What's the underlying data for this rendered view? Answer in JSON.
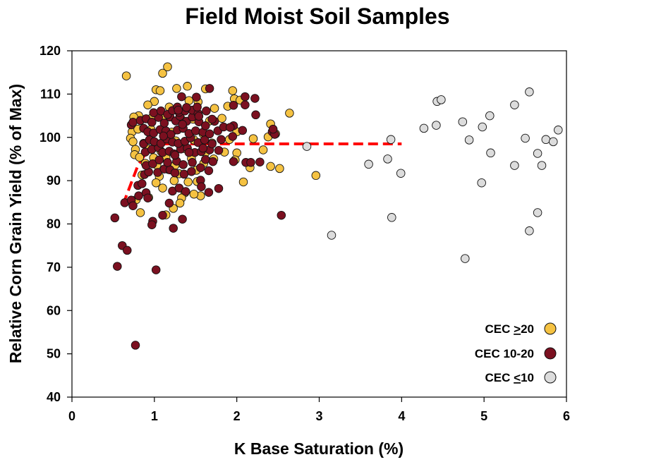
{
  "chart_data": {
    "type": "scatter",
    "title": "Field Moist Soil Samples",
    "xlabel": "K Base Saturation (%)",
    "ylabel": "Relative Corn Grain Yield (% of Max)",
    "xlim": [
      0,
      6
    ],
    "ylim": [
      40,
      120
    ],
    "xticks": [
      0,
      1,
      2,
      3,
      4,
      5,
      6
    ],
    "yticks": [
      40,
      50,
      60,
      70,
      80,
      90,
      100,
      110,
      120
    ],
    "grid": false,
    "legend_position": "bottom-right",
    "series": [
      {
        "name": "CEC >20",
        "legend_parts": [
          "CEC ",
          ">",
          "20"
        ],
        "color": "#F5C242",
        "points": [
          [
            0.66,
            114.2
          ],
          [
            1.1,
            114.8
          ],
          [
            1.16,
            116.3
          ],
          [
            1.02,
            111.0
          ],
          [
            1.07,
            110.8
          ],
          [
            1.27,
            111.3
          ],
          [
            1.4,
            111.8
          ],
          [
            1.62,
            111.2
          ],
          [
            1.95,
            110.8
          ],
          [
            1.97,
            108.9
          ],
          [
            1.42,
            108.5
          ],
          [
            1.53,
            108.2
          ],
          [
            1.0,
            108.3
          ],
          [
            0.92,
            107.5
          ],
          [
            1.18,
            107.0
          ],
          [
            1.73,
            106.7
          ],
          [
            1.89,
            107.2
          ],
          [
            2.04,
            108.6
          ],
          [
            2.64,
            105.6
          ],
          [
            0.81,
            105.0
          ],
          [
            0.75,
            104.7
          ],
          [
            0.97,
            104.5
          ],
          [
            1.1,
            104.9
          ],
          [
            1.33,
            104.1
          ],
          [
            1.47,
            104.2
          ],
          [
            1.67,
            103.8
          ],
          [
            1.82,
            104.4
          ],
          [
            2.41,
            103.1
          ],
          [
            0.73,
            101.3
          ],
          [
            0.8,
            101.9
          ],
          [
            0.96,
            101.8
          ],
          [
            1.21,
            101.2
          ],
          [
            1.59,
            100.8
          ],
          [
            2.0,
            101.3
          ],
          [
            2.47,
            100.8
          ],
          [
            0.71,
            99.8
          ],
          [
            0.74,
            99.0
          ],
          [
            0.87,
            98.6
          ],
          [
            1.0,
            98.9
          ],
          [
            1.26,
            99.2
          ],
          [
            1.48,
            99.4
          ],
          [
            1.7,
            98.7
          ],
          [
            1.91,
            99.5
          ],
          [
            2.2,
            99.7
          ],
          [
            2.38,
            100.1
          ],
          [
            0.77,
            97.2
          ],
          [
            0.93,
            97.3
          ],
          [
            1.08,
            96.8
          ],
          [
            1.37,
            97.4
          ],
          [
            1.62,
            96.5
          ],
          [
            1.85,
            96.6
          ],
          [
            2.0,
            96.4
          ],
          [
            2.32,
            97.1
          ],
          [
            0.76,
            96.0
          ],
          [
            0.82,
            95.4
          ],
          [
            0.99,
            95.3
          ],
          [
            1.14,
            95.3
          ],
          [
            1.45,
            95.1
          ],
          [
            1.72,
            95.0
          ],
          [
            1.98,
            94.8
          ],
          [
            0.89,
            94.0
          ],
          [
            1.03,
            93.6
          ],
          [
            1.25,
            93.5
          ],
          [
            1.6,
            94.0
          ],
          [
            2.16,
            93.0
          ],
          [
            2.41,
            93.3
          ],
          [
            2.52,
            92.8
          ],
          [
            1.17,
            92.6
          ],
          [
            1.3,
            91.6
          ],
          [
            1.51,
            92.4
          ],
          [
            0.85,
            91.3
          ],
          [
            1.06,
            91.0
          ],
          [
            1.24,
            90.0
          ],
          [
            1.41,
            89.7
          ],
          [
            1.52,
            89.8
          ],
          [
            2.08,
            89.7
          ],
          [
            2.96,
            91.2
          ],
          [
            1.02,
            89.5
          ],
          [
            1.1,
            88.3
          ],
          [
            1.37,
            87.2
          ],
          [
            1.56,
            86.5
          ],
          [
            1.48,
            86.9
          ],
          [
            1.33,
            86.0
          ],
          [
            0.93,
            86.1
          ],
          [
            1.31,
            84.8
          ],
          [
            1.23,
            83.6
          ],
          [
            1.14,
            82.1
          ],
          [
            0.83,
            82.6
          ],
          [
            0.78,
            85.6
          ]
        ]
      },
      {
        "name": "CEC 10-20",
        "legend_parts": [
          "CEC 10-20"
        ],
        "color": "#7B1020",
        "points": [
          [
            0.52,
            81.4
          ],
          [
            0.55,
            70.2
          ],
          [
            0.61,
            75.0
          ],
          [
            0.67,
            73.9
          ],
          [
            0.77,
            52.0
          ],
          [
            1.02,
            69.4
          ],
          [
            0.98,
            80.6
          ],
          [
            0.97,
            79.8
          ],
          [
            1.1,
            82.0
          ],
          [
            1.23,
            79.0
          ],
          [
            1.34,
            81.1
          ],
          [
            2.54,
            82.0
          ],
          [
            0.64,
            84.9
          ],
          [
            0.72,
            85.5
          ],
          [
            0.74,
            84.2
          ],
          [
            0.81,
            86.5
          ],
          [
            0.9,
            87.2
          ],
          [
            0.92,
            86.0
          ],
          [
            1.18,
            84.8
          ],
          [
            1.22,
            87.6
          ],
          [
            1.3,
            88.3
          ],
          [
            1.38,
            87.5
          ],
          [
            1.66,
            87.3
          ],
          [
            1.78,
            88.2
          ],
          [
            0.8,
            88.9
          ],
          [
            0.85,
            89.3
          ],
          [
            0.88,
            91.4
          ],
          [
            0.93,
            92.0
          ],
          [
            1.04,
            91.9
          ],
          [
            1.12,
            92.7
          ],
          [
            1.19,
            92.5
          ],
          [
            1.25,
            91.8
          ],
          [
            1.36,
            91.5
          ],
          [
            1.45,
            92.1
          ],
          [
            1.56,
            90.1
          ],
          [
            1.66,
            92.3
          ],
          [
            1.57,
            88.6
          ],
          [
            0.9,
            93.5
          ],
          [
            0.98,
            93.9
          ],
          [
            1.06,
            94.8
          ],
          [
            1.16,
            94.2
          ],
          [
            1.27,
            94.5
          ],
          [
            1.35,
            93.7
          ],
          [
            1.46,
            94.2
          ],
          [
            1.56,
            93.0
          ],
          [
            1.62,
            94.9
          ],
          [
            1.71,
            94.4
          ],
          [
            1.96,
            94.4
          ],
          [
            2.11,
            94.2
          ],
          [
            2.17,
            94.2
          ],
          [
            2.28,
            94.3
          ],
          [
            0.89,
            96.6
          ],
          [
            0.97,
            97.2
          ],
          [
            1.05,
            97.6
          ],
          [
            1.1,
            96.5
          ],
          [
            1.18,
            96.8
          ],
          [
            1.24,
            96.2
          ],
          [
            1.32,
            97.3
          ],
          [
            1.4,
            97.5
          ],
          [
            1.49,
            96.5
          ],
          [
            1.57,
            96.7
          ],
          [
            1.67,
            97.1
          ],
          [
            1.78,
            97.0
          ],
          [
            0.87,
            98.5
          ],
          [
            0.94,
            99.4
          ],
          [
            1.0,
            99.0
          ],
          [
            1.08,
            98.6
          ],
          [
            1.15,
            99.6
          ],
          [
            1.22,
            98.9
          ],
          [
            1.29,
            98.6
          ],
          [
            1.37,
            99.1
          ],
          [
            1.44,
            99.9
          ],
          [
            1.53,
            98.8
          ],
          [
            1.61,
            99.4
          ],
          [
            1.7,
            98.5
          ],
          [
            1.81,
            99.5
          ],
          [
            1.95,
            100.2
          ],
          [
            0.72,
            102.9
          ],
          [
            0.87,
            102.1
          ],
          [
            0.92,
            101.3
          ],
          [
            0.99,
            101.0
          ],
          [
            1.07,
            101.8
          ],
          [
            1.14,
            101.5
          ],
          [
            1.2,
            100.7
          ],
          [
            1.28,
            101.7
          ],
          [
            1.35,
            102.1
          ],
          [
            1.42,
            100.9
          ],
          [
            1.5,
            101.5
          ],
          [
            1.59,
            101.2
          ],
          [
            1.67,
            100.8
          ],
          [
            1.77,
            101.5
          ],
          [
            1.96,
            102.7
          ],
          [
            2.07,
            101.6
          ],
          [
            2.43,
            101.3
          ],
          [
            2.46,
            100.7
          ],
          [
            0.74,
            103.5
          ],
          [
            0.83,
            103.9
          ],
          [
            0.9,
            104.3
          ],
          [
            0.97,
            103.5
          ],
          [
            1.05,
            104.6
          ],
          [
            1.12,
            103.3
          ],
          [
            1.19,
            104.7
          ],
          [
            1.26,
            103.8
          ],
          [
            1.31,
            104.9
          ],
          [
            1.39,
            103.7
          ],
          [
            1.46,
            104.7
          ],
          [
            1.54,
            103.6
          ],
          [
            1.62,
            102.7
          ],
          [
            1.73,
            103.7
          ],
          [
            1.84,
            102.4
          ],
          [
            1.92,
            102.3
          ],
          [
            2.44,
            101.9
          ],
          [
            0.99,
            105.7
          ],
          [
            1.08,
            106.1
          ],
          [
            1.16,
            105.3
          ],
          [
            1.22,
            106.2
          ],
          [
            1.3,
            105.8
          ],
          [
            1.37,
            106.1
          ],
          [
            1.46,
            106.3
          ],
          [
            1.53,
            105.5
          ],
          [
            1.63,
            106.1
          ],
          [
            1.7,
            104.2
          ],
          [
            2.23,
            105.2
          ],
          [
            1.28,
            107.0
          ],
          [
            1.39,
            106.9
          ],
          [
            1.52,
            107.0
          ],
          [
            1.96,
            107.4
          ],
          [
            2.1,
            107.5
          ],
          [
            1.33,
            109.4
          ],
          [
            1.51,
            109.3
          ],
          [
            1.67,
            111.3
          ],
          [
            2.1,
            109.4
          ],
          [
            2.22,
            109.0
          ],
          [
            1.59,
            97.5
          ],
          [
            1.25,
            95.9
          ],
          [
            1.42,
            96.5
          ],
          [
            1.11,
            100.3
          ],
          [
            1.34,
            103.0
          ],
          [
            1.54,
            104.9
          ],
          [
            1.29,
            106.3
          ]
        ]
      },
      {
        "name": "CEC <10",
        "legend_parts": [
          "CEC ",
          "<",
          "10"
        ],
        "color": "#DCDCDC",
        "points": [
          [
            2.85,
            97.9
          ],
          [
            3.15,
            77.4
          ],
          [
            3.6,
            93.8
          ],
          [
            3.83,
            95.0
          ],
          [
            3.87,
            99.5
          ],
          [
            3.88,
            81.5
          ],
          [
            3.99,
            91.7
          ],
          [
            4.27,
            102.1
          ],
          [
            4.42,
            102.8
          ],
          [
            4.43,
            108.3
          ],
          [
            4.48,
            108.7
          ],
          [
            4.74,
            103.6
          ],
          [
            4.77,
            72.0
          ],
          [
            4.82,
            99.4
          ],
          [
            4.97,
            89.5
          ],
          [
            4.98,
            102.4
          ],
          [
            5.07,
            105.0
          ],
          [
            5.08,
            96.4
          ],
          [
            5.37,
            93.5
          ],
          [
            5.37,
            107.5
          ],
          [
            5.5,
            99.8
          ],
          [
            5.55,
            110.5
          ],
          [
            5.55,
            78.4
          ],
          [
            5.65,
            82.6
          ],
          [
            5.65,
            96.3
          ],
          [
            5.7,
            93.5
          ],
          [
            5.75,
            99.5
          ],
          [
            5.84,
            99.0
          ],
          [
            5.9,
            101.7
          ]
        ]
      }
    ],
    "fit_line": {
      "color": "#FF0000",
      "style": "dashed",
      "points": [
        [
          0.62,
          84.5
        ],
        [
          0.7,
          88.5
        ],
        [
          0.8,
          93.5
        ],
        [
          0.9,
          96.4
        ],
        [
          1.0,
          98.0
        ],
        [
          1.12,
          98.5
        ],
        [
          1.5,
          98.5
        ],
        [
          2.5,
          98.5
        ],
        [
          3.5,
          98.5
        ],
        [
          4.0,
          98.5
        ]
      ]
    }
  }
}
